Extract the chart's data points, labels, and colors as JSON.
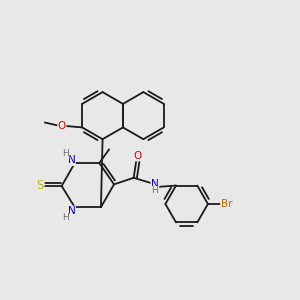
{
  "bg_color": "#e8e8e8",
  "bond_color": "#1a1a1a",
  "atom_colors": {
    "N": "#0000cc",
    "O": "#dd0000",
    "S": "#bbbb00",
    "Br": "#cc6600",
    "C": "#1a1a1a",
    "H": "#707070"
  },
  "font_size": 7.0,
  "bond_width": 1.3
}
